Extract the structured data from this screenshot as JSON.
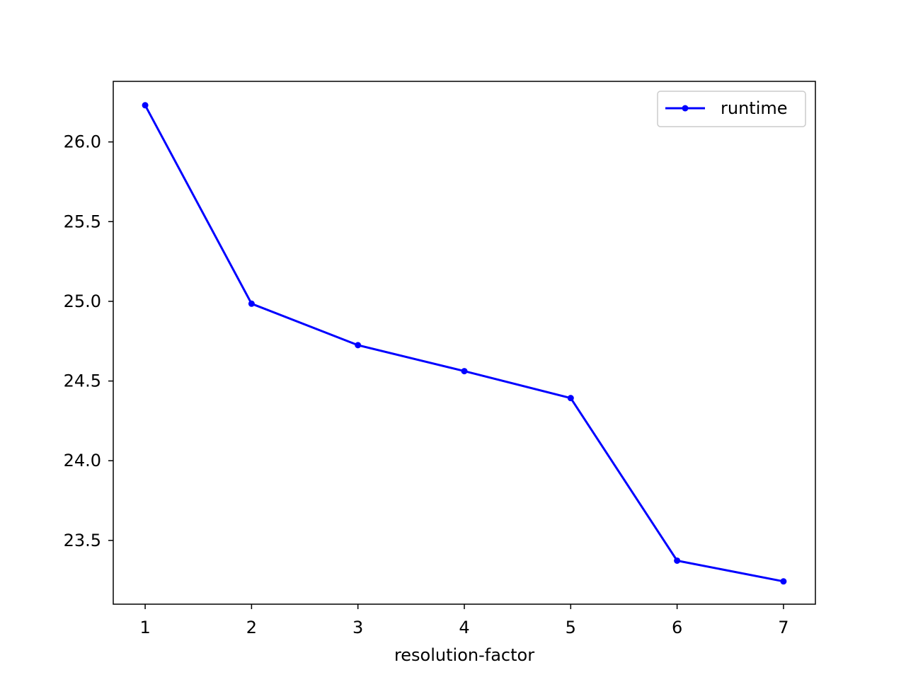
{
  "chart_data": {
    "type": "line",
    "title": "",
    "xlabel": "resolution-factor",
    "ylabel": "",
    "x": [
      1,
      2,
      3,
      4,
      5,
      6,
      7
    ],
    "series": [
      {
        "name": "runtime",
        "values": [
          26.23,
          24.985,
          24.725,
          24.562,
          24.393,
          23.373,
          23.243
        ],
        "color": "#0000ff",
        "marker": "dot"
      }
    ],
    "xticks": [
      1,
      2,
      3,
      4,
      5,
      6,
      7
    ],
    "xtick_labels": [
      "1",
      "2",
      "3",
      "4",
      "5",
      "6",
      "7"
    ],
    "yticks": [
      23.5,
      24.0,
      24.5,
      25.0,
      25.5,
      26.0
    ],
    "ytick_labels": [
      "23.5",
      "24.0",
      "24.5",
      "25.0",
      "25.5",
      "26.0"
    ],
    "xlim": [
      0.7,
      7.3
    ],
    "ylim": [
      23.1,
      26.38
    ],
    "grid": false,
    "legend": {
      "position": "top-right",
      "entries": [
        "runtime"
      ]
    }
  }
}
